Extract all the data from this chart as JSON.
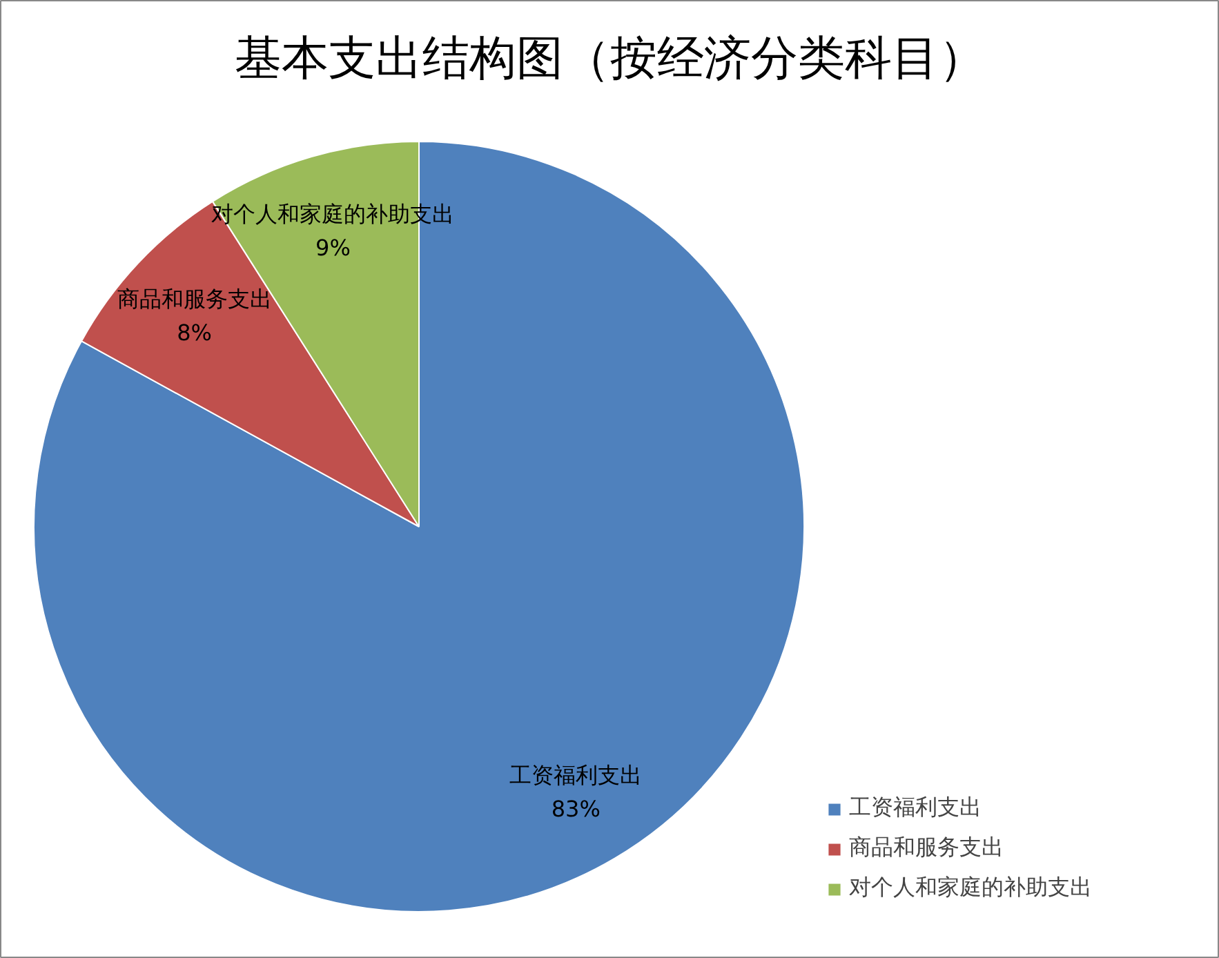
{
  "chart_data": {
    "type": "pie",
    "title": "基本支出结构图（按经济分类科目）",
    "categories": [
      "工资福利支出",
      "商品和服务支出",
      "对个人和家庭的补助支出"
    ],
    "values": [
      83,
      8,
      9
    ],
    "colors": [
      "#4f81bd",
      "#c0504d",
      "#9bbb59"
    ],
    "value_labels": [
      "83%",
      "8%",
      "9%"
    ],
    "legend": "right"
  }
}
